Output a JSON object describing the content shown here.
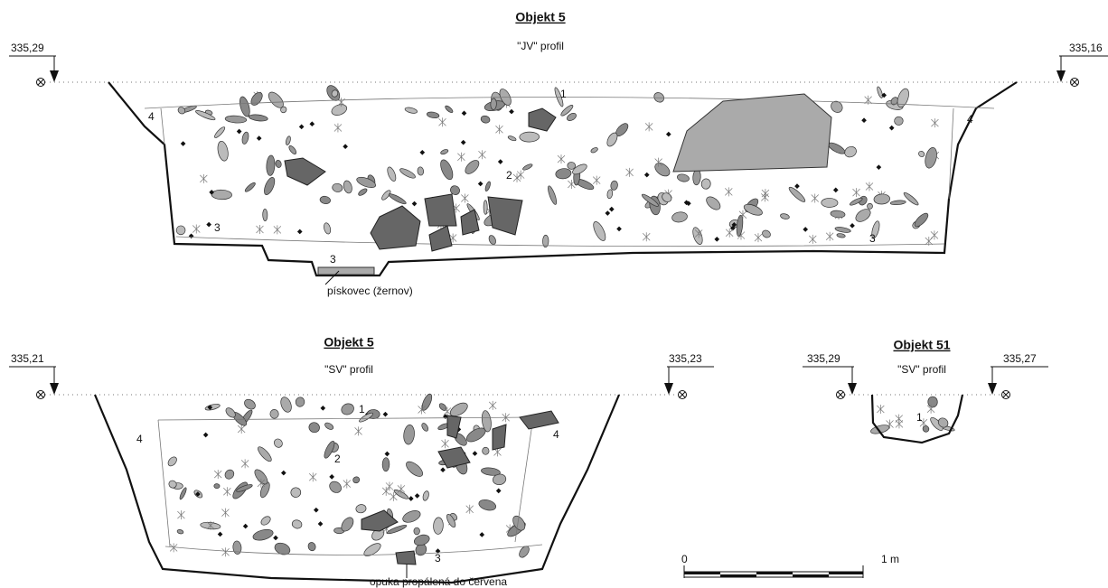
{
  "profiles": [
    {
      "title": "Objekt 5",
      "subtitle": "\"JV\" profil",
      "elevations": [
        "335,29",
        "335,16"
      ],
      "layers": [
        "1",
        "2",
        "3",
        "3",
        "3",
        "4",
        "4"
      ],
      "notes": [
        "pískovec (žernov)"
      ]
    },
    {
      "title": "Objekt 5",
      "subtitle": "\"SV\" profil",
      "elevations": [
        "335,21",
        "335,23"
      ],
      "layers": [
        "1",
        "2",
        "3",
        "4",
        "4"
      ],
      "notes": [
        "opuka propálená do červena"
      ]
    },
    {
      "title": "Objekt 51",
      "subtitle": "\"SV\" profil",
      "elevations": [
        "335,29",
        "335,27"
      ],
      "layers": [
        "1"
      ]
    }
  ],
  "scale": {
    "labels": [
      "0",
      "1 m"
    ]
  }
}
